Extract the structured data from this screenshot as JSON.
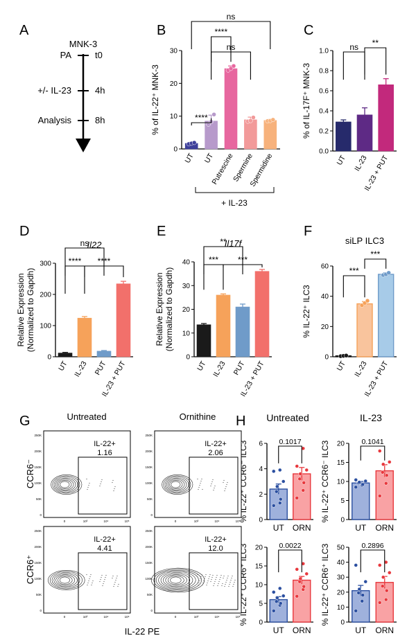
{
  "panel_labels": {
    "A": "A",
    "B": "B",
    "C": "C",
    "D": "D",
    "E": "E",
    "F": "F",
    "G": "G",
    "H": "H"
  },
  "timeline": {
    "cell": "MNK-3",
    "steps": [
      {
        "label": "PA",
        "time": "t0"
      },
      {
        "label": "+/- IL-23",
        "time": "4h"
      },
      {
        "label": "Analysis",
        "time": "8h"
      }
    ]
  },
  "panelB_group_label": "+ IL-23",
  "panelG": {
    "col_titles": [
      "Untreated",
      "Ornithine"
    ],
    "row_labels": [
      "CCR6⁻",
      "CCR6⁺"
    ],
    "x_label": "IL-22 PE",
    "gate_name": "IL-22+",
    "gate_values": [
      [
        "1.16",
        "2.06"
      ],
      [
        "4.41",
        "12.0"
      ]
    ],
    "y_ticks": [
      "250K",
      "200K",
      "150K",
      "100K",
      "50K",
      "0"
    ],
    "x_ticks": [
      "0",
      "10³",
      "10⁴",
      "10⁵"
    ]
  },
  "panelH": {
    "col_titles": [
      "Untreated",
      "IL-23"
    ]
  },
  "chart_data": [
    {
      "panel": "B",
      "type": "bar",
      "title": "",
      "ylabel": "% of IL-22⁺ MNK-3",
      "categories": [
        "UT",
        "UT",
        "Putrescine",
        "Spermine",
        "Spermidine"
      ],
      "values": [
        1.7,
        8.5,
        24.5,
        8.9,
        8.7
      ],
      "errors": [
        0.3,
        1.8,
        0.8,
        0.8,
        0.3
      ],
      "points": [
        [
          1.5,
          1.7,
          1.9
        ],
        [
          7.5,
          8.3,
          10.5
        ],
        [
          24.0,
          24.5,
          25.3
        ],
        [
          8.4,
          8.6,
          9.6
        ],
        [
          8.5,
          8.6,
          8.9
        ]
      ],
      "colors": [
        "#3d3f9a",
        "#b79acb",
        "#e7679f",
        "#f29a9a",
        "#f7b27c"
      ],
      "ylim": [
        0,
        30
      ],
      "yticks": [
        0,
        10,
        20,
        30
      ],
      "brackets": [
        {
          "from": 0,
          "to": 1,
          "label": "****"
        },
        {
          "from": 1,
          "to": 2,
          "label": "****"
        },
        {
          "from": 1,
          "to": 3,
          "label": "ns"
        },
        {
          "from": 0,
          "to": 4,
          "label": "ns"
        }
      ]
    },
    {
      "panel": "C",
      "type": "bar",
      "title": "",
      "ylabel": "% of IL-17F⁺ MNK-3",
      "categories": [
        "UT",
        "IL-23",
        "IL-23 + PUT"
      ],
      "values": [
        0.29,
        0.36,
        0.66
      ],
      "errors": [
        0.02,
        0.07,
        0.06
      ],
      "points": [],
      "colors": [
        "#262a6b",
        "#5e2a85",
        "#c2297c"
      ],
      "ylim": [
        0,
        1.0
      ],
      "yticks": [
        0.0,
        0.2,
        0.4,
        0.6,
        0.8,
        1.0
      ],
      "brackets": [
        {
          "from": 0,
          "to": 1,
          "label": "ns"
        },
        {
          "from": 1,
          "to": 2,
          "label": "**"
        }
      ]
    },
    {
      "panel": "D",
      "type": "bar",
      "title": "Il22",
      "ylabel": "Relative Expression (Normalized to Gapdh)",
      "categories": [
        "UT",
        "IL-23",
        "PUT",
        "IL-23 + PUT"
      ],
      "values": [
        12,
        124,
        18,
        234
      ],
      "errors": [
        2,
        5,
        2,
        8
      ],
      "points": [],
      "colors": [
        "#1a1a1a",
        "#f6a25a",
        "#6f9bc9",
        "#f2706b"
      ],
      "ylim": [
        0,
        300
      ],
      "yticks": [
        0,
        100,
        200,
        300
      ],
      "brackets": [
        {
          "from": 0,
          "to": 1,
          "label": "****"
        },
        {
          "from": 1,
          "to": 3,
          "label": "****"
        },
        {
          "from": 0,
          "to": 2,
          "label": "ns"
        }
      ]
    },
    {
      "panel": "E",
      "type": "bar",
      "title": "Il17f",
      "ylabel": "Relative Expression (Normalized to Gapdh)",
      "categories": [
        "UT",
        "IL-23",
        "PUT",
        "IL-23 + PUT"
      ],
      "values": [
        13.5,
        26,
        21,
        36
      ],
      "errors": [
        0.5,
        0.5,
        1.2,
        0.8
      ],
      "points": [],
      "colors": [
        "#1a1a1a",
        "#f6a25a",
        "#6f9bc9",
        "#f2706b"
      ],
      "ylim": [
        0,
        40
      ],
      "yticks": [
        0,
        10,
        20,
        30,
        40
      ],
      "brackets": [
        {
          "from": 0,
          "to": 1,
          "label": "***"
        },
        {
          "from": 1,
          "to": 3,
          "label": "***"
        },
        {
          "from": 0,
          "to": 2,
          "label": "**"
        }
      ]
    },
    {
      "panel": "F",
      "type": "bar",
      "title": "siLP ILC3",
      "ylabel": "% IL-22⁺ ILC3",
      "categories": [
        "UT",
        "IL-23",
        "IL-23 + PUT"
      ],
      "values": [
        0.6,
        35,
        54.5
      ],
      "errors": [
        0.3,
        1.5,
        1.0
      ],
      "points": [
        [
          0.4,
          0.6,
          0.8
        ],
        [
          34,
          35.5,
          37
        ],
        [
          54,
          54.5,
          55.5
        ]
      ],
      "colors": [
        "#ffffff",
        "#f9c49d",
        "#a7cbe8"
      ],
      "edge_colors": [
        "#1a1a1a",
        "#f6a25a",
        "#6f9bc9"
      ],
      "point_colors": [
        "#1a1a1a",
        "#f6a25a",
        "#6f9bc9"
      ],
      "ylim": [
        0,
        60
      ],
      "yticks": [
        0,
        20,
        40,
        60
      ],
      "brackets": [
        {
          "from": 0,
          "to": 1,
          "label": "***"
        },
        {
          "from": 1,
          "to": 2,
          "label": "***"
        }
      ]
    },
    {
      "panel": "H1",
      "type": "bar",
      "title": "",
      "ylabel": "% IL-22⁺ CCR6⁻ ILC3",
      "categories": [
        "UT",
        "ORN"
      ],
      "values": [
        2.4,
        3.6
      ],
      "errors": [
        0.4,
        0.5
      ],
      "points": [
        [
          1.1,
          1.3,
          1.6,
          2.2,
          2.6,
          3.0,
          3.8,
          3.9
        ],
        [
          1.7,
          2.3,
          2.9,
          3.2,
          3.6,
          3.9,
          4.2,
          5.6
        ]
      ],
      "colors": [
        "#9fb1dc",
        "#f9a2a4"
      ],
      "edge_colors": [
        "#2b4fa0",
        "#e8383d"
      ],
      "point_colors": [
        "#2b4fa0",
        "#e8383d"
      ],
      "ylim": [
        0,
        6
      ],
      "yticks": [
        0,
        2,
        4,
        6
      ],
      "brackets": [
        {
          "from": 0,
          "to": 1,
          "label": "0.1017"
        }
      ]
    },
    {
      "panel": "H2",
      "type": "bar",
      "title": "",
      "ylabel": "% IL-22⁺ CCR6⁻ ILC3",
      "categories": [
        "UT",
        "ORN"
      ],
      "values": [
        9.6,
        12.8
      ],
      "errors": [
        0.4,
        1.6
      ],
      "points": [
        [
          8.5,
          9.0,
          9.2,
          9.6,
          9.8,
          10.1,
          10.4
        ],
        [
          6.2,
          9.5,
          11.6,
          12.4,
          14.5,
          15.1,
          18.0
        ]
      ],
      "colors": [
        "#9fb1dc",
        "#f9a2a4"
      ],
      "edge_colors": [
        "#2b4fa0",
        "#e8383d"
      ],
      "point_colors": [
        "#2b4fa0",
        "#e8383d"
      ],
      "ylim": [
        0,
        20
      ],
      "yticks": [
        0,
        5,
        10,
        15,
        20
      ],
      "brackets": [
        {
          "from": 0,
          "to": 1,
          "label": "0.1041"
        }
      ]
    },
    {
      "panel": "H3",
      "type": "bar",
      "title": "",
      "ylabel": "% IL-22⁺ CCR6⁺ ILC3",
      "categories": [
        "UT",
        "ORN"
      ],
      "values": [
        6.0,
        11.2
      ],
      "errors": [
        0.8,
        1.0
      ],
      "points": [
        [
          3.0,
          4.5,
          5.0,
          5.5,
          6.5,
          7.0,
          8.0,
          9.0
        ],
        [
          6.9,
          8.7,
          9.5,
          10.8,
          11.6,
          12.9,
          14.1,
          15.6
        ]
      ],
      "colors": [
        "#9fb1dc",
        "#f9a2a4"
      ],
      "edge_colors": [
        "#2b4fa0",
        "#e8383d"
      ],
      "point_colors": [
        "#2b4fa0",
        "#e8383d"
      ],
      "ylim": [
        0,
        20
      ],
      "yticks": [
        0,
        5,
        10,
        15,
        20
      ],
      "brackets": [
        {
          "from": 0,
          "to": 1,
          "label": "0.0022"
        }
      ]
    },
    {
      "panel": "H4",
      "type": "bar",
      "title": "",
      "ylabel": "% IL-22⁺ CCR6⁺ ILC3",
      "categories": [
        "UT",
        "ORN"
      ],
      "values": [
        21.0,
        26.5
      ],
      "errors": [
        3.5,
        4.0
      ],
      "points": [
        [
          7.5,
          14,
          18,
          19.5,
          22,
          27,
          38
        ],
        [
          13,
          15,
          21,
          24,
          30,
          33,
          38,
          40
        ]
      ],
      "colors": [
        "#9fb1dc",
        "#f9a2a4"
      ],
      "edge_colors": [
        "#2b4fa0",
        "#e8383d"
      ],
      "point_colors": [
        "#2b4fa0",
        "#e8383d"
      ],
      "ylim": [
        0,
        50
      ],
      "yticks": [
        0,
        10,
        20,
        30,
        40,
        50
      ],
      "brackets": [
        {
          "from": 0,
          "to": 1,
          "label": "0.2896"
        }
      ]
    }
  ]
}
